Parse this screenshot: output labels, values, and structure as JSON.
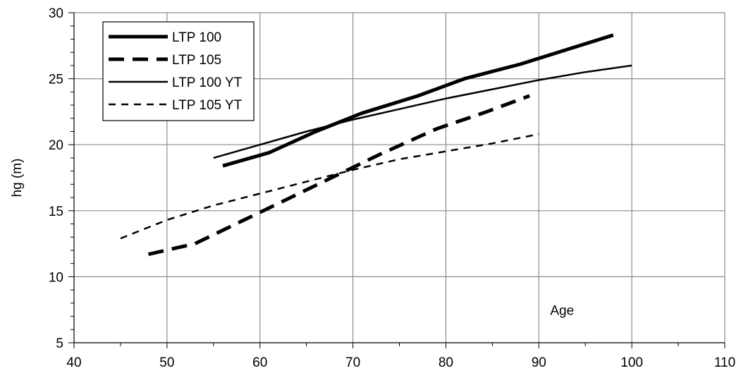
{
  "chart_data": {
    "type": "line",
    "title": "",
    "xlabel": "Age",
    "ylabel": "hg (m)",
    "xlim": [
      40,
      110
    ],
    "ylim": [
      5,
      30
    ],
    "x_ticks": [
      40,
      50,
      60,
      70,
      80,
      90,
      100,
      110
    ],
    "y_ticks": [
      5,
      10,
      15,
      20,
      25,
      30
    ],
    "grid": true,
    "legend_position": "top-left",
    "series": [
      {
        "name": "LTP 100",
        "style": "thick-solid",
        "color": "#000000",
        "x": [
          56,
          61,
          66,
          71,
          77,
          82,
          88,
          93,
          98
        ],
        "y": [
          18.4,
          19.4,
          21.0,
          22.4,
          23.7,
          25.0,
          26.1,
          27.2,
          28.3
        ]
      },
      {
        "name": "LTP 105",
        "style": "thick-dashed",
        "color": "#000000",
        "x": [
          48,
          53,
          58,
          63,
          68,
          73,
          79,
          84,
          89
        ],
        "y": [
          11.7,
          12.5,
          14.2,
          15.9,
          17.6,
          19.3,
          21.2,
          22.4,
          23.7
        ]
      },
      {
        "name": "LTP 100 YT",
        "style": "thin-solid",
        "color": "#000000",
        "x": [
          55,
          60,
          65,
          70,
          75,
          80,
          85,
          90,
          95,
          100
        ],
        "y": [
          19.0,
          20.0,
          21.0,
          21.9,
          22.7,
          23.5,
          24.2,
          24.9,
          25.5,
          26.0
        ]
      },
      {
        "name": "LTP 105 YT",
        "style": "thin-dashed",
        "color": "#000000",
        "x": [
          45,
          50,
          55,
          60,
          65,
          70,
          75,
          80,
          85,
          90
        ],
        "y": [
          12.9,
          14.3,
          15.4,
          16.3,
          17.2,
          18.1,
          18.9,
          19.5,
          20.1,
          20.8
        ]
      }
    ]
  }
}
